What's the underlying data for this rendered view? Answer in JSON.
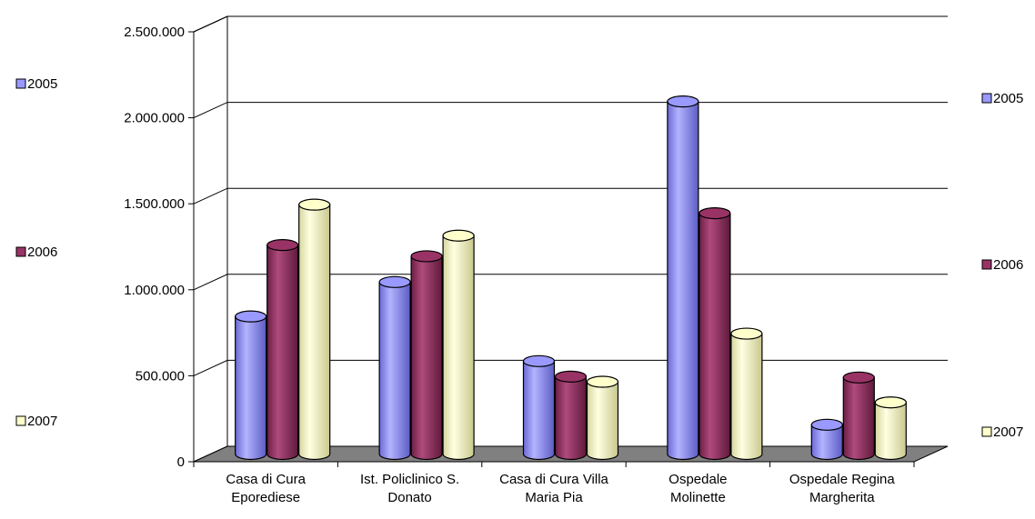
{
  "chart_data": {
    "type": "bar",
    "title": "",
    "xlabel": "",
    "ylabel": "",
    "categories": [
      [
        "Casa di Cura",
        "Eporediese"
      ],
      [
        "Ist. Policlinico S.",
        "Donato"
      ],
      [
        "Casa di Cura Villa",
        "Maria Pia"
      ],
      [
        "Ospedale",
        "Molinette"
      ],
      [
        "Ospedale Regina",
        "Margherita"
      ]
    ],
    "series": [
      {
        "name": "2005",
        "values": [
          800000,
          1000000,
          540000,
          2050000,
          170000
        ]
      },
      {
        "name": "2006",
        "values": [
          1215000,
          1150000,
          450000,
          1400000,
          445000
        ]
      },
      {
        "name": "2007",
        "values": [
          1450000,
          1270000,
          420000,
          700000,
          300000
        ]
      }
    ],
    "ylim": [
      0,
      2500000
    ],
    "yticks": [
      {
        "value": 0,
        "label": "0"
      },
      {
        "value": 500000,
        "label": "500.000"
      },
      {
        "value": 1000000,
        "label": "1.000.000"
      },
      {
        "value": 1500000,
        "label": "1.500.000"
      },
      {
        "value": 2000000,
        "label": "2.000.000"
      },
      {
        "value": 2500000,
        "label": "2.500.000"
      }
    ],
    "grid": true,
    "legend_placement": "left-and-right",
    "colors": {
      "2005": "#9999ff",
      "2006": "#993366",
      "2007": "#ffffcc",
      "floor": "#808080"
    }
  }
}
